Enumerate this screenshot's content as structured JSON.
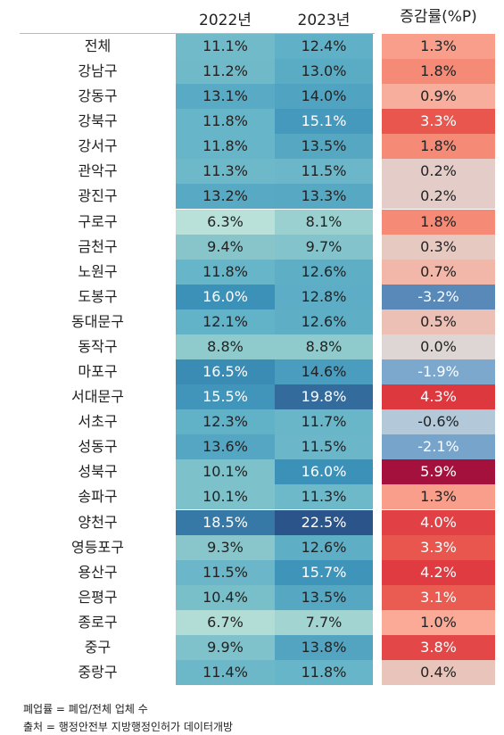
{
  "table": {
    "header": [
      "2022년",
      "2023년",
      "증감률(%P)"
    ],
    "rows": [
      [
        "전체",
        "11.1%",
        "12.4%",
        "1.3%"
      ],
      [
        "강남구",
        "11.2%",
        "13.0%",
        "1.8%"
      ],
      [
        "강동구",
        "13.1%",
        "14.0%",
        "0.9%"
      ],
      [
        "강북구",
        "11.8%",
        "15.1%",
        "3.3%"
      ],
      [
        "강서구",
        "11.8%",
        "13.5%",
        "1.8%"
      ],
      [
        "관악구",
        "11.3%",
        "11.5%",
        "0.2%"
      ],
      [
        "광진구",
        "13.2%",
        "13.3%",
        "0.2%"
      ],
      [
        "구로구",
        "6.3%",
        "8.1%",
        "1.8%"
      ],
      [
        "금천구",
        "9.4%",
        "9.7%",
        "0.3%"
      ],
      [
        "노원구",
        "11.8%",
        "12.6%",
        "0.7%"
      ],
      [
        "도봉구",
        "16.0%",
        "12.8%",
        "-3.2%"
      ],
      [
        "동대문구",
        "12.1%",
        "12.6%",
        "0.5%"
      ],
      [
        "동작구",
        "8.8%",
        "8.8%",
        "0.0%"
      ],
      [
        "마포구",
        "16.5%",
        "14.6%",
        "-1.9%"
      ],
      [
        "서대문구",
        "15.5%",
        "19.8%",
        "4.3%"
      ],
      [
        "서초구",
        "12.3%",
        "11.7%",
        "-0.6%"
      ],
      [
        "성동구",
        "13.6%",
        "11.5%",
        "-2.1%"
      ],
      [
        "성북구",
        "10.1%",
        "16.0%",
        "5.9%"
      ],
      [
        "송파구",
        "10.1%",
        "11.3%",
        "1.3%"
      ],
      [
        "양천구",
        "18.5%",
        "22.5%",
        "4.0%"
      ],
      [
        "영등포구",
        "9.3%",
        "12.6%",
        "3.3%"
      ],
      [
        "용산구",
        "11.5%",
        "15.7%",
        "4.2%"
      ],
      [
        "은평구",
        "10.4%",
        "13.5%",
        "3.1%"
      ],
      [
        "종로구",
        "6.7%",
        "7.7%",
        "1.0%"
      ],
      [
        "중구",
        "9.9%",
        "13.8%",
        "3.8%"
      ],
      [
        "중랑구",
        "11.4%",
        "11.8%",
        "0.4%"
      ]
    ]
  },
  "footnotes": [
    "폐업률 = 폐업/전체 업체 수",
    "출처 = 행정안전부 지방행정인허가 데이터개방"
  ]
}
